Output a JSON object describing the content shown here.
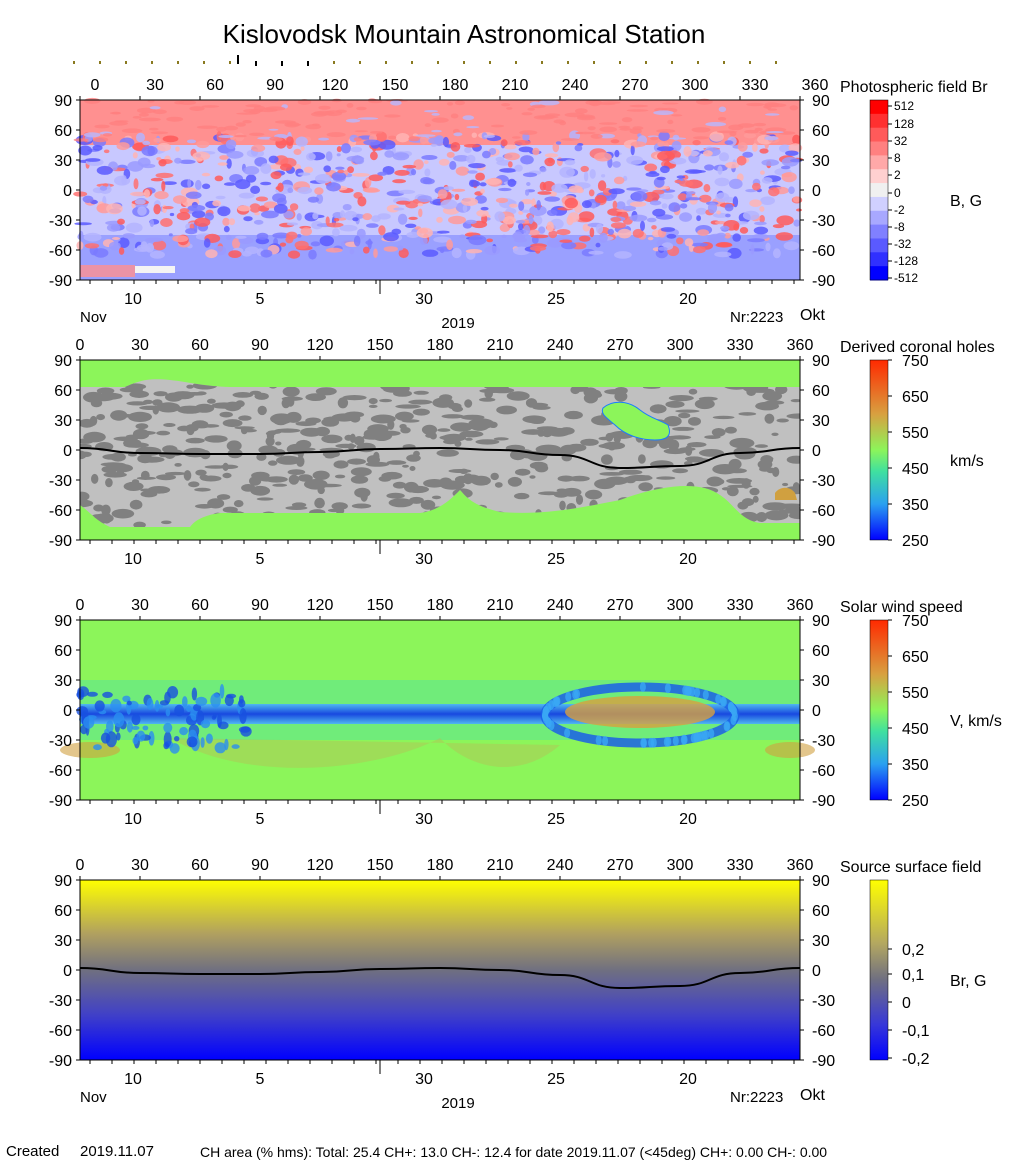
{
  "title": "Kislovodsk Mountain Astronomical Station",
  "common": {
    "x_ticks": [
      0,
      30,
      60,
      90,
      120,
      150,
      180,
      210,
      240,
      270,
      300,
      330,
      360
    ],
    "y_ticks": [
      90,
      60,
      30,
      0,
      -30,
      -60,
      -90
    ],
    "date_ticks": [
      "10",
      "5",
      "30",
      "25",
      "20"
    ],
    "month_left": "Nov",
    "month_right": "Okt",
    "year": "2019",
    "rotation": "Nr:2223"
  },
  "colors": {
    "red": "#ff0000",
    "blue": "#0000ff",
    "green": "#8cf55a",
    "gray_light": "#c0c0c0",
    "gray_dark": "#808080",
    "yellow": "#ffff00"
  },
  "chart_data": [
    {
      "type": "heatmap",
      "title": "Photospheric field Br",
      "unit_label": "B, G",
      "xlim": [
        0,
        360
      ],
      "ylim": [
        -90,
        90
      ],
      "colorbar_ticks": [
        "512",
        "128",
        "32",
        "8",
        "2",
        "0",
        "-2",
        "-8",
        "-32",
        "-128",
        "-512"
      ]
    },
    {
      "type": "heatmap",
      "title": "Derived coronal holes",
      "unit_label": "km/s",
      "xlim": [
        0,
        360
      ],
      "ylim": [
        -90,
        90
      ],
      "colorbar_ticks": [
        "750",
        "650",
        "550",
        "450",
        "350",
        "250"
      ],
      "neutral_line": {
        "x": [
          0,
          30,
          60,
          90,
          120,
          150,
          180,
          210,
          240,
          270,
          300,
          330,
          360
        ],
        "y": [
          2,
          -3,
          -4,
          -4,
          -2,
          1,
          2,
          0,
          -5,
          -18,
          -16,
          -3,
          2
        ]
      }
    },
    {
      "type": "heatmap",
      "title": "Solar wind speed",
      "unit_label": "V, km/s",
      "xlim": [
        0,
        360
      ],
      "ylim": [
        -90,
        90
      ],
      "colorbar_ticks": [
        "750",
        "650",
        "550",
        "450",
        "350",
        "250"
      ]
    },
    {
      "type": "heatmap",
      "title": "Source surface field",
      "unit_label": "Br, G",
      "xlim": [
        0,
        360
      ],
      "ylim": [
        -90,
        90
      ],
      "colorbar_ticks": [
        "0,2",
        "0,1",
        "0",
        "-0,1",
        "-0,2"
      ],
      "neutral_line": {
        "x": [
          0,
          30,
          60,
          90,
          120,
          150,
          180,
          210,
          240,
          270,
          300,
          330,
          360
        ],
        "y": [
          2,
          -3,
          -4,
          -4,
          -2,
          1,
          2,
          0,
          -5,
          -18,
          -16,
          -3,
          2
        ]
      }
    }
  ],
  "footer": {
    "created_label": "Created",
    "created_date": "2019.11.07",
    "ch_area": "CH area (% hms): Total: 25.4 CH+: 13.0   CH-: 12.4 for date 2019.11.07 (<45deg) CH+: 0.00    CH-: 0.00"
  }
}
